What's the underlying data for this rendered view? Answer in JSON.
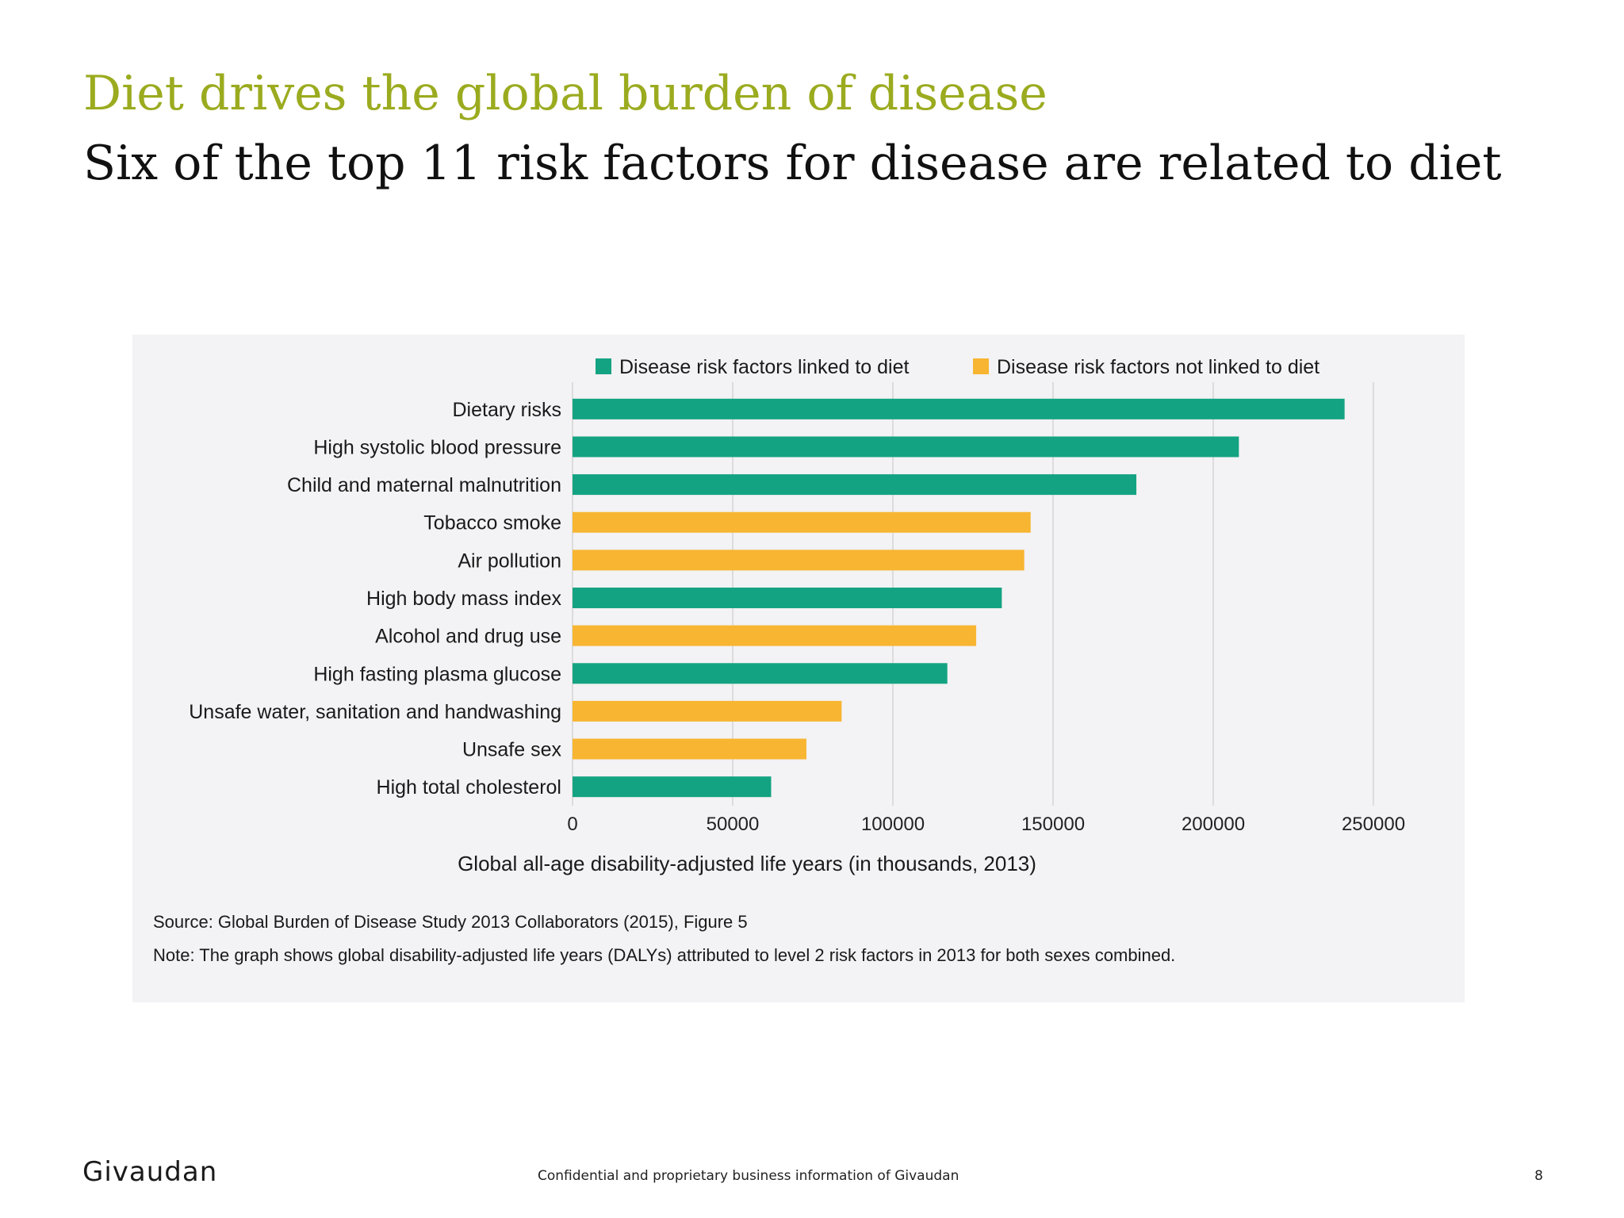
{
  "title": "Diet drives the global burden of disease",
  "subtitle": "Six of the top 11 risk factors for disease are related to diet",
  "legend": {
    "diet": "Disease risk factors linked to diet",
    "not_diet": "Disease risk factors not linked to diet"
  },
  "colors": {
    "diet": "#14a382",
    "not_diet": "#f7b531",
    "grid": "#dcdcdc"
  },
  "chart_data": {
    "type": "bar",
    "orientation": "horizontal",
    "title": "",
    "xlabel": "Global all-age disability-adjusted life years (in thousands, 2013)",
    "ylabel": "",
    "xlim": [
      0,
      250000
    ],
    "xticks": [
      0,
      50000,
      100000,
      150000,
      200000,
      250000
    ],
    "grid": true,
    "legend_position": "top",
    "categories": [
      "Dietary risks",
      "High systolic blood pressure",
      "Child and maternal malnutrition",
      "Tobacco smoke",
      "Air pollution",
      "High body mass index",
      "Alcohol and drug use",
      "High fasting plasma glucose",
      "Unsafe water, sanitation and handwashing",
      "Unsafe sex",
      "High total cholesterol"
    ],
    "values": [
      241000,
      208000,
      176000,
      143000,
      141000,
      134000,
      126000,
      117000,
      84000,
      73000,
      62000
    ],
    "linked_to_diet": [
      true,
      true,
      true,
      false,
      false,
      true,
      false,
      true,
      false,
      false,
      true
    ]
  },
  "source": "Source: Global Burden of Disease Study 2013 Collaborators (2015), Figure 5",
  "note": "Note: The graph shows global disability-adjusted life years (DALYs) attributed to level 2 risk factors in 2013 for both sexes combined.",
  "footer": {
    "logo": "Givaudan",
    "confidential": "Confidential and proprietary business information of Givaudan",
    "page": "8"
  }
}
